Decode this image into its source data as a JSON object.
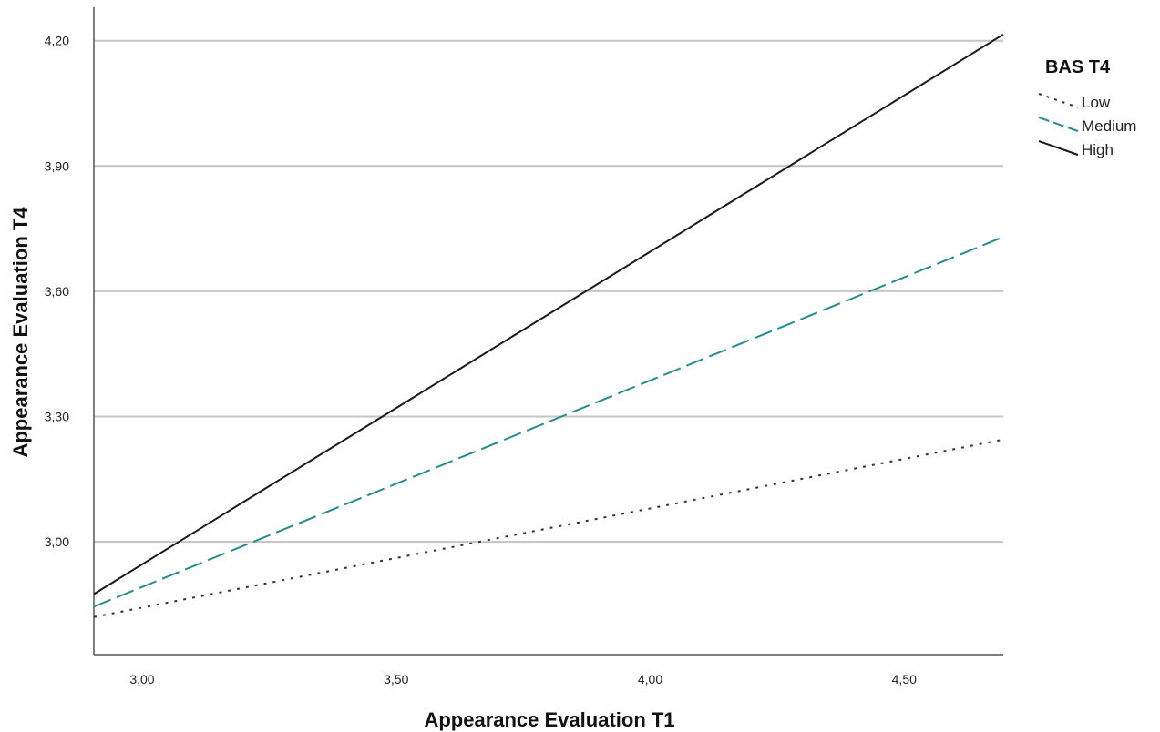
{
  "chart_data": {
    "type": "line",
    "title": "",
    "xlabel": "Appearance Evaluation T1",
    "ylabel": "Appearance Evaluation T4",
    "xlim": [
      2.905,
      4.695
    ],
    "ylim": [
      2.73,
      4.28
    ],
    "x_ticks": [
      3.0,
      3.5,
      4.0,
      4.5
    ],
    "x_tick_labels": [
      "3,00",
      "3,50",
      "4,00",
      "4,50"
    ],
    "y_ticks": [
      3.0,
      3.3,
      3.6,
      3.9,
      4.2
    ],
    "y_tick_labels": [
      "3,00",
      "3,30",
      "3,60",
      "3,90",
      "4,20"
    ],
    "grid": "horizontal",
    "legend": {
      "title": "BAS T4",
      "placement": "right"
    },
    "series": [
      {
        "name": "Low",
        "style": "dotted",
        "color": "#333333",
        "x": [
          2.905,
          4.695
        ],
        "y": [
          2.82,
          3.245
        ]
      },
      {
        "name": "Medium",
        "style": "dashed",
        "color": "#2a8a8a",
        "x": [
          2.905,
          4.695
        ],
        "y": [
          2.845,
          3.73
        ]
      },
      {
        "name": "High",
        "style": "solid",
        "color": "#1a1a1a",
        "x": [
          2.905,
          4.695
        ],
        "y": [
          2.875,
          4.215
        ]
      }
    ]
  }
}
